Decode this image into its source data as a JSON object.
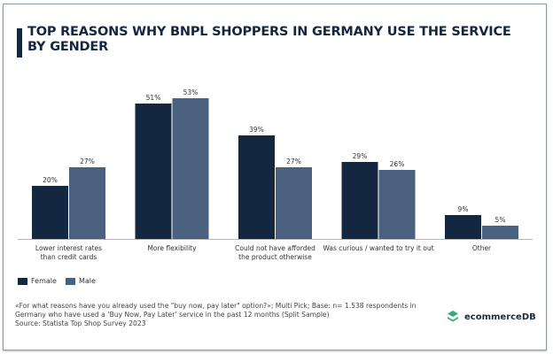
{
  "chart_data": {
    "type": "bar",
    "title": "TOP REASONS WHY BNPL SHOPPERS IN GERMANY USE THE SERVICE BY GENDER",
    "categories": [
      "Lower interest rates than credit cards",
      "More flexibility",
      "Could not have afforded the product otherwise",
      "Was curious / wanted to try it out",
      "Other"
    ],
    "category_lines": [
      [
        "Lower interest rates",
        "than credit cards"
      ],
      [
        "More flexibility"
      ],
      [
        "Could not have afforded",
        "the product otherwise"
      ],
      [
        "Was curious / wanted to try it out"
      ],
      [
        "Other"
      ]
    ],
    "series": [
      {
        "name": "Female",
        "values": [
          20,
          51,
          39,
          29,
          9
        ],
        "color": "#142741"
      },
      {
        "name": "Male",
        "values": [
          27,
          53,
          27,
          26,
          5
        ],
        "color": "#4a6180"
      }
    ],
    "unit": "%",
    "ylim": [
      0,
      55
    ],
    "grid": false,
    "legend": "bottom-left"
  },
  "footnote": {
    "line1": "«For what reasons have you already used the \"buy now, pay later\" option?»; Multi Pick; Base: n= 1.538 respondents in",
    "line2": "Germany who have used a ‘Buy Now, Pay Later’ service in the past 12 months (Split Sample)",
    "source": "Source: Statista Top Shop Survey 2023"
  },
  "logo": {
    "text": "ecommerceDB",
    "color": "#3aa876"
  }
}
